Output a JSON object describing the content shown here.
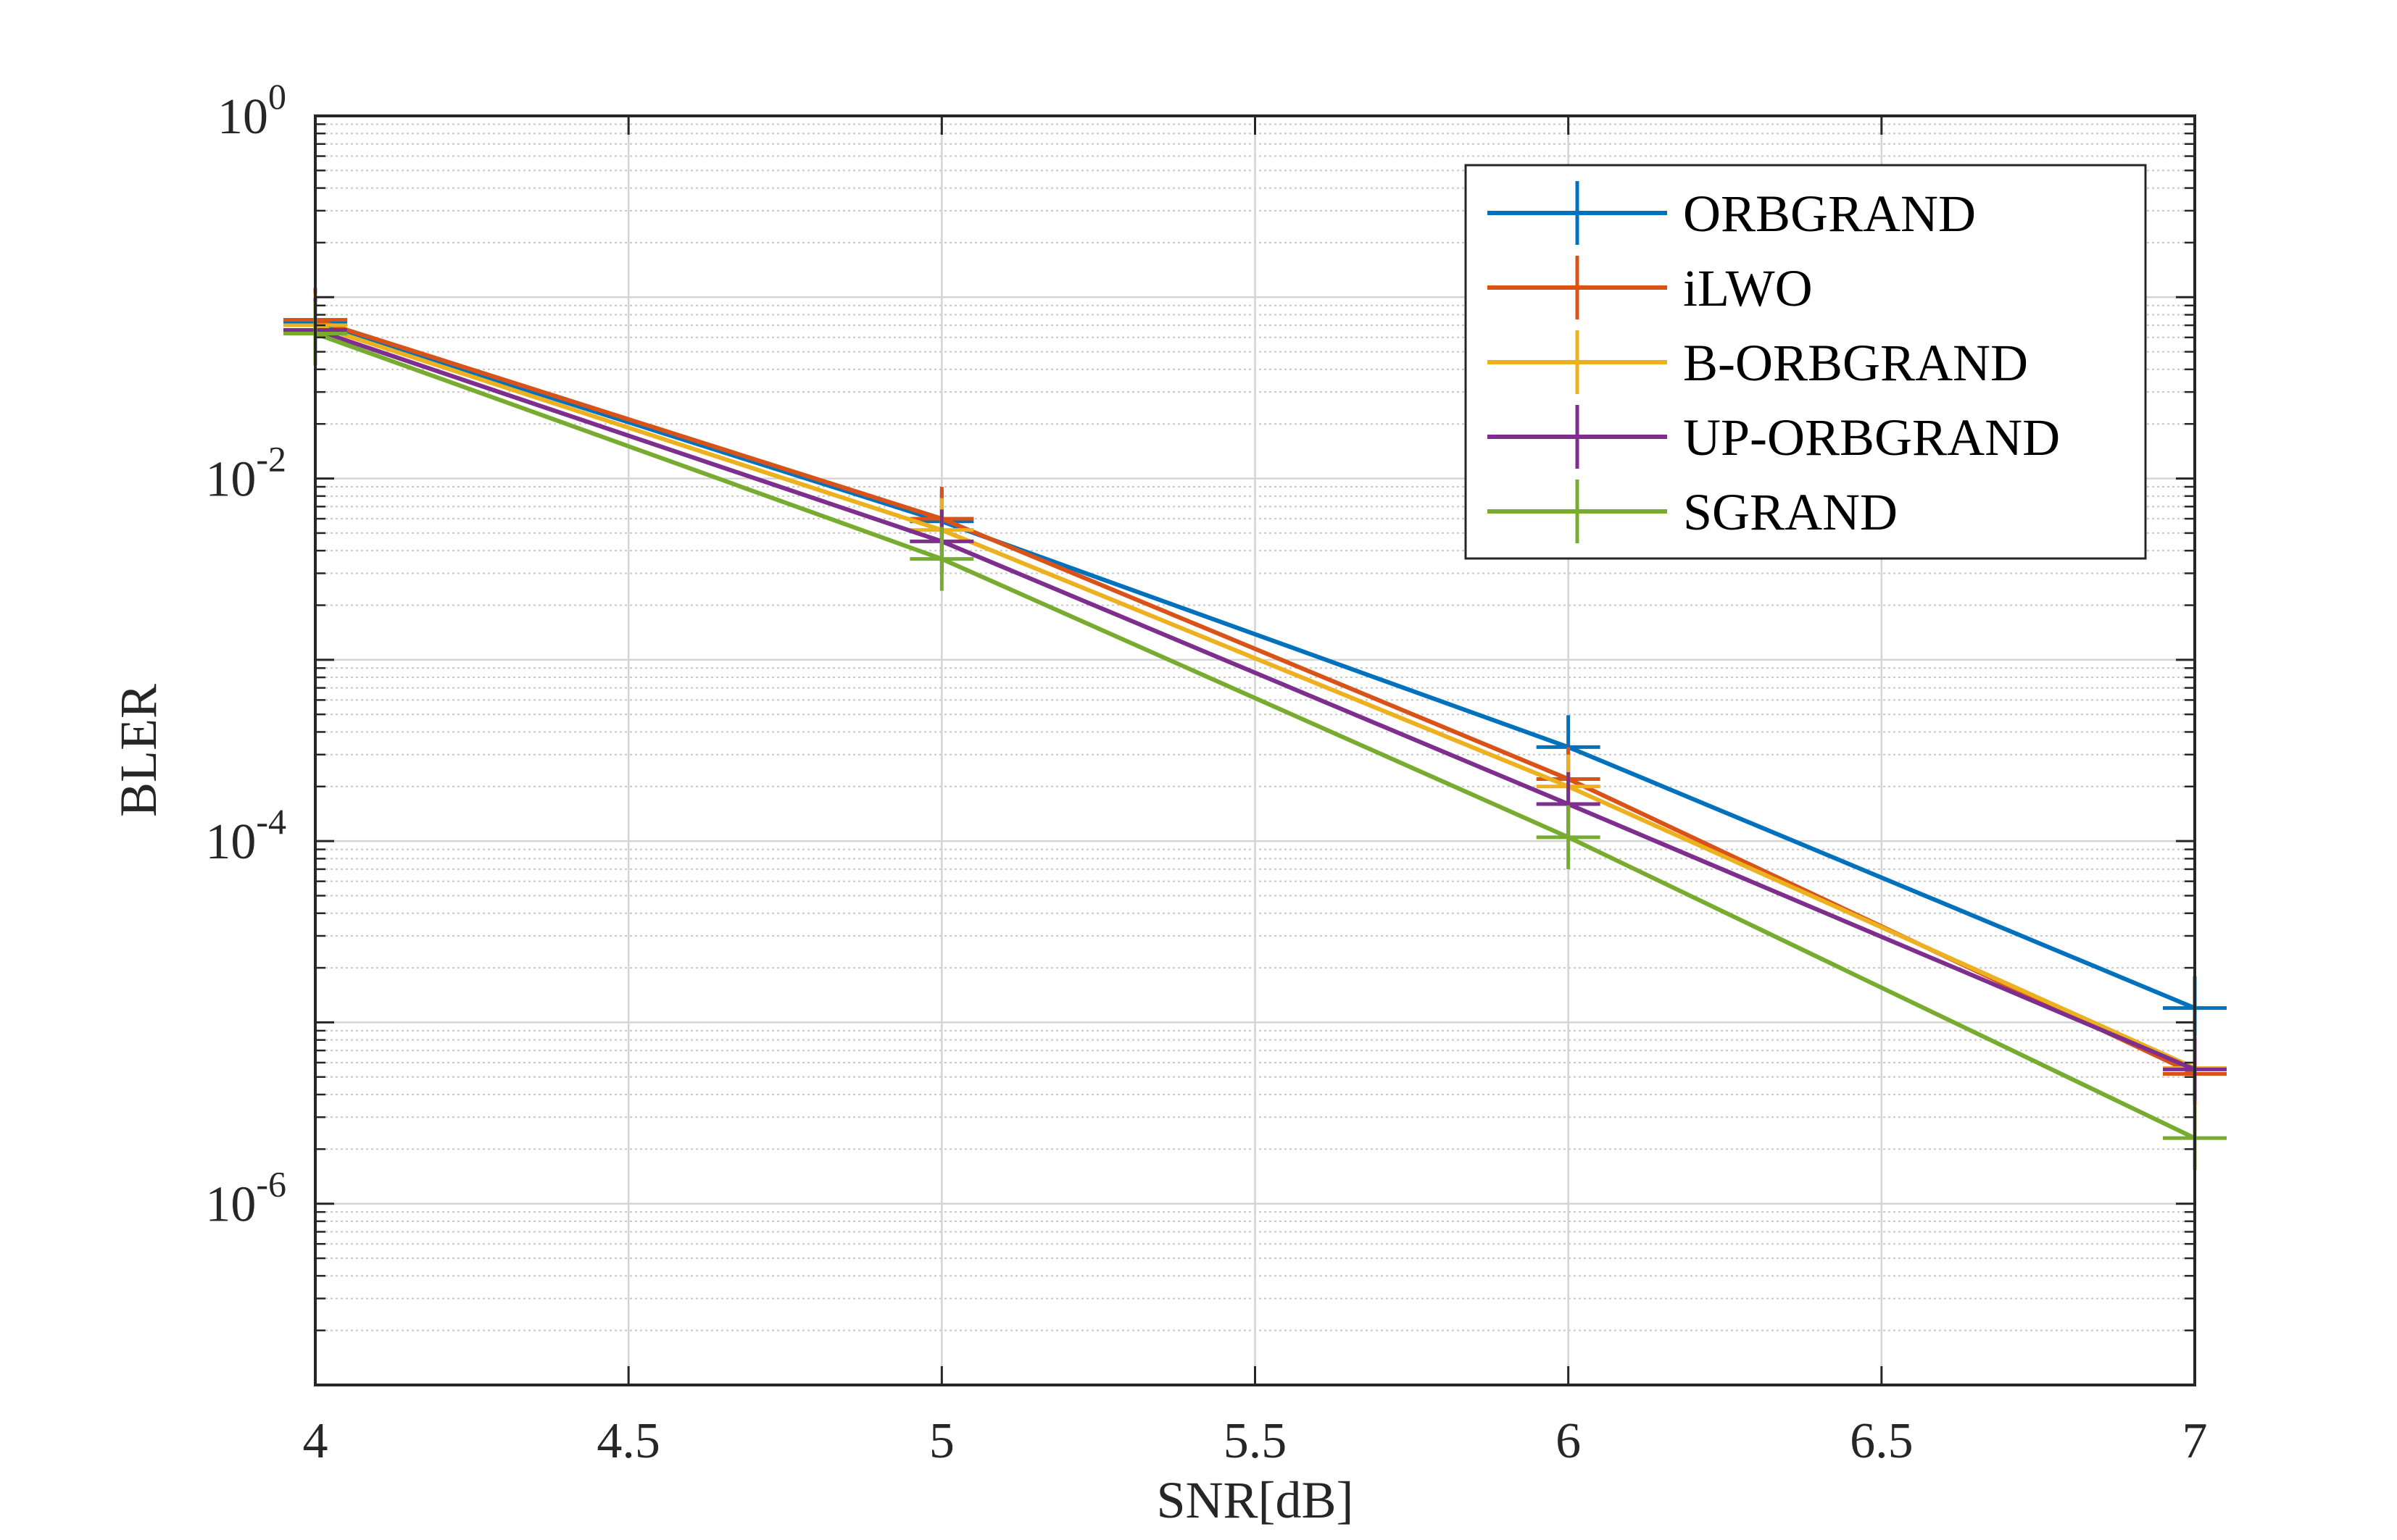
{
  "chart_data": {
    "type": "line",
    "title": "",
    "xlabel": "SNR[dB]",
    "ylabel": "BLER",
    "xlim": [
      4,
      7
    ],
    "ylim": [
      1e-07,
      1
    ],
    "yscale": "log",
    "grid": true,
    "legend_position": "top-right",
    "x_ticks": [
      4,
      4.5,
      5,
      5.5,
      6,
      6.5,
      7
    ],
    "x_tick_labels": [
      "4",
      "4.5",
      "5",
      "5.5",
      "6",
      "6.5",
      "7"
    ],
    "y_ticks": [
      {
        "base": "10",
        "exp": "0",
        "value": 1
      },
      {
        "base": "10",
        "exp": "-2",
        "value": 0.01
      },
      {
        "base": "10",
        "exp": "-4",
        "value": 0.0001
      },
      {
        "base": "10",
        "exp": "-6",
        "value": 1e-06
      }
    ],
    "x": [
      4,
      5,
      6,
      7
    ],
    "series": [
      {
        "name": "ORBGRAND",
        "color": "#0072BD",
        "values": [
          0.072,
          0.0058,
          0.00033,
          1.2e-05
        ]
      },
      {
        "name": "iLWO",
        "color": "#D95319",
        "values": [
          0.075,
          0.006,
          0.00022,
          5.2e-06
        ]
      },
      {
        "name": "B-ORBGRAND",
        "color": "#EDB120",
        "values": [
          0.07,
          0.0052,
          0.0002,
          5.6e-06
        ]
      },
      {
        "name": "UP-ORBGRAND",
        "color": "#7E2F8E",
        "values": [
          0.066,
          0.0045,
          0.00016,
          5.5e-06
        ]
      },
      {
        "name": "SGRAND",
        "color": "#77AC30",
        "values": [
          0.063,
          0.0036,
          0.000105,
          2.3e-06
        ]
      }
    ]
  }
}
